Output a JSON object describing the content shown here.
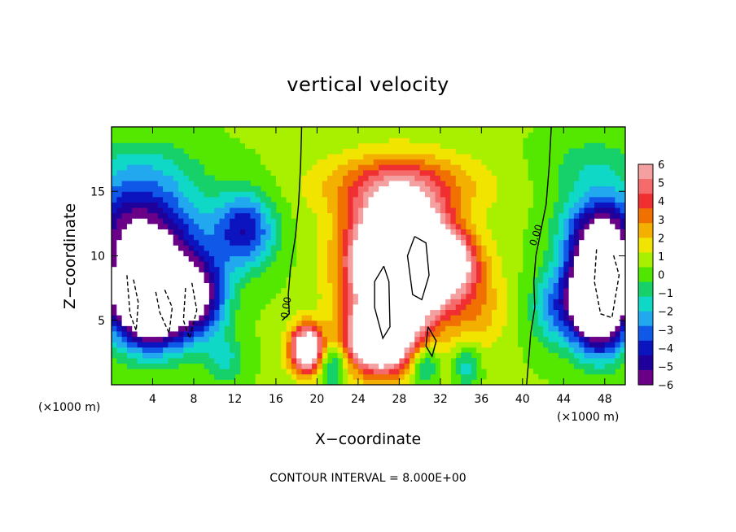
{
  "chart_data": {
    "type": "heatmap",
    "title": "vertical velocity",
    "xlabel": "X−coordinate",
    "ylabel": "Z−coordinate",
    "x_units": "(×1000 m)",
    "x_units_right": "(×1000 m)",
    "xlim": [
      0,
      50
    ],
    "ylim": [
      0,
      20
    ],
    "x_ticks": [
      4,
      8,
      12,
      16,
      20,
      24,
      28,
      32,
      36,
      40,
      44,
      48
    ],
    "x_tick_labels": [
      "4",
      "8",
      "12",
      "16",
      "20",
      "24",
      "28",
      "32",
      "36",
      "40",
      "44",
      "48"
    ],
    "y_ticks": [
      5,
      10,
      15
    ],
    "y_tick_labels": [
      "5",
      "10",
      "15"
    ],
    "colorbar_ticks": [
      6,
      5,
      4,
      3,
      2,
      1,
      0,
      -1,
      -2,
      -3,
      -4,
      -5,
      -6
    ],
    "colorbar_tick_labels": [
      "6",
      "5",
      "4",
      "3",
      "2",
      "1",
      "0",
      "−1",
      "−2",
      "−3",
      "−4",
      "−5",
      "−6"
    ],
    "colorbar_colors": [
      "#f5a0a0",
      "#f56a6a",
      "#f03030",
      "#f07000",
      "#f4b000",
      "#f0e400",
      "#a8f000",
      "#50e600",
      "#16d06a",
      "#10d8c6",
      "#22a8ee",
      "#1058e8",
      "#0c14c0",
      "#20009a",
      "#6a0088"
    ],
    "contour_interval_text": "CONTOUR INTERVAL = 8.000E+00",
    "contour_labels": [
      "0.00",
      "0.00"
    ],
    "features": [
      {
        "kind": "updraft",
        "x": 28,
        "z": 10,
        "peak": 16
      },
      {
        "kind": "updraft",
        "x": 19,
        "z": 2.8,
        "peak": 9
      },
      {
        "kind": "downdraft",
        "x": 4,
        "z": 7,
        "peak": -16
      },
      {
        "kind": "downdraft",
        "x": 47.5,
        "z": 7,
        "peak": -16
      }
    ]
  }
}
